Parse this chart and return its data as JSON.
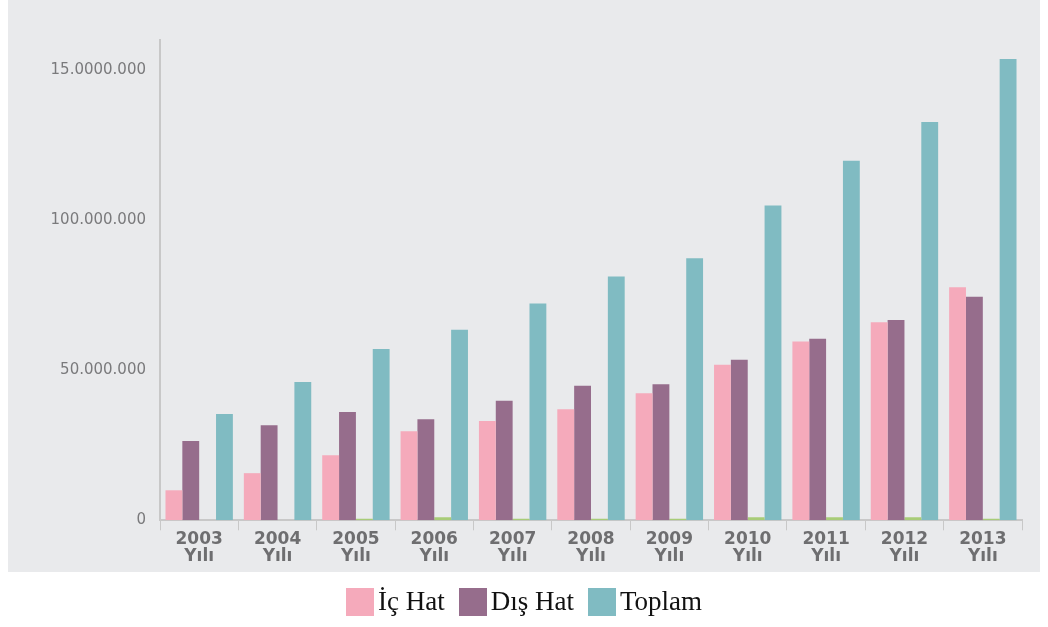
{
  "chart_data": {
    "type": "bar",
    "categories": [
      "2003 Yılı",
      "2004 Yılı",
      "2005 Yılı",
      "2006 Yılı",
      "2007 Yılı",
      "2008 Yılı",
      "2009 Yılı",
      "2010 Yılı",
      "2011 Yılı",
      "2012 Yılı",
      "2013 Yılı"
    ],
    "series": [
      {
        "name": "İç Hat",
        "color": "#f5aabb",
        "values": [
          10000000,
          15700000,
          21700000,
          29700000,
          33100000,
          37000000,
          42300000,
          51800000,
          59600000,
          66000000,
          77600000
        ]
      },
      {
        "name": "Dış Hat",
        "color": "#966d8c",
        "values": [
          26400000,
          31700000,
          36100000,
          33700000,
          39800000,
          44800000,
          45300000,
          53500000,
          60500000,
          66700000,
          74500000
        ]
      },
      {
        "color": "#a8cc78",
        "values": [
          0,
          0,
          500000,
          1000000,
          500000,
          500000,
          500000,
          1000000,
          1000000,
          1000000,
          500000
        ]
      },
      {
        "name": "Toplam",
        "color": "#80bbc2",
        "values": [
          35400000,
          46100000,
          57100000,
          63500000,
          72200000,
          81200000,
          87300000,
          104900000,
          119800000,
          132700000,
          153700000
        ]
      }
    ],
    "ylim": [
      0,
      160000000
    ],
    "yticks": [
      0,
      {
        "value": 50000000,
        "label": "50.000.000"
      },
      {
        "value": 100000000,
        "label": "100.000.000"
      },
      {
        "value": 150000000,
        "label": "15.0000.000"
      }
    ],
    "grid": false,
    "legend": "bottom"
  }
}
